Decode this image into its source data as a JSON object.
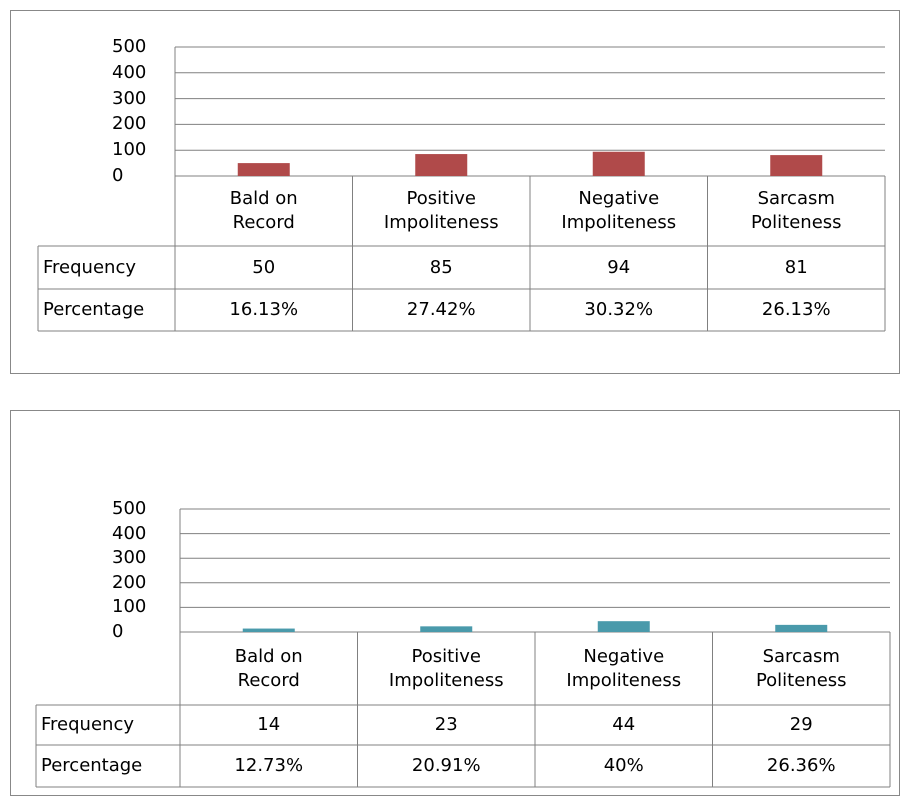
{
  "chart_data": [
    {
      "type": "bar",
      "color": "#b04a4a",
      "categories": [
        "Bald on Record",
        "Positive Impoliteness",
        "Negative Impoliteness",
        "Sarcasm Politeness"
      ],
      "values": [
        50,
        85,
        94,
        81
      ],
      "ylim": [
        0,
        500
      ],
      "yticks": [
        0,
        100,
        200,
        300,
        400,
        500
      ],
      "grid": true,
      "table_rows": [
        "Frequency",
        "Percentage"
      ],
      "percentages": [
        "16.13%",
        "27.42%",
        "30.32%",
        "26.13%"
      ]
    },
    {
      "type": "bar",
      "color": "#4a9aab",
      "categories": [
        "Bald on Record",
        "Positive Impoliteness",
        "Negative Impoliteness",
        "Sarcasm Politeness"
      ],
      "values": [
        14,
        23,
        44,
        29
      ],
      "ylim": [
        0,
        500
      ],
      "yticks": [
        0,
        100,
        200,
        300,
        400,
        500
      ],
      "grid": true,
      "table_rows": [
        "Frequency",
        "Percentage"
      ],
      "percentages": [
        "12.73%",
        "20.91%",
        "40%",
        "26.36%"
      ]
    }
  ]
}
